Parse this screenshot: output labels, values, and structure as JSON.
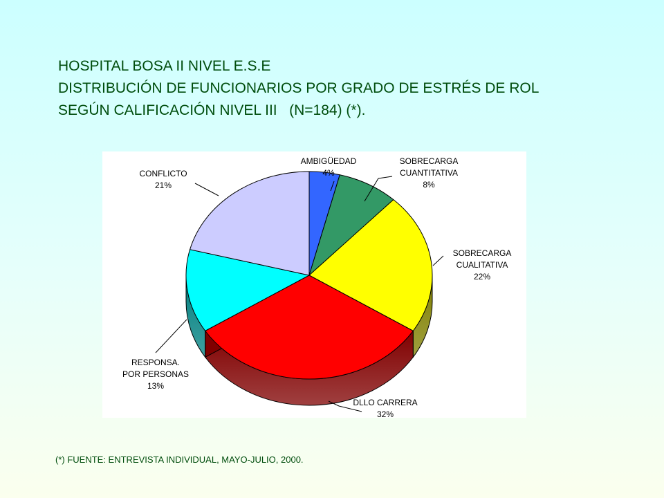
{
  "title": {
    "line1": "HOSPITAL BOSA II NIVEL E.S.E",
    "line2": "DISTRIBUCIÓN DE FUNCIONARIOS POR GRADO DE ESTRÉS DE ROL",
    "line3": "SEGÚN CALIFICACIÓN NIVEL III   (N=184) (*)."
  },
  "footnote": "(*) FUENTE: ENTREVISTA INDIVIDUAL, MAYO-JULIO, 2000.",
  "chart_data": {
    "type": "pie",
    "style": "3d-pie",
    "categories": [
      "AMBIGÜEDAD",
      "SOBRECARGA CUANTITATIVA",
      "SOBRECARGA CUALITATIVA",
      "DLLO CARRERA",
      "RESPONSA. POR PERSONAS",
      "CONFLICTO"
    ],
    "values": [
      4,
      8,
      22,
      32,
      13,
      21
    ],
    "unit": "%",
    "slices": [
      {
        "label_lines": [
          "AMBIGÜEDAD"
        ],
        "value_text": "4%",
        "value": 4,
        "color": "#3366ff",
        "side_color": "#1a3399"
      },
      {
        "label_lines": [
          "SOBRECARGA",
          "CUANTITATIVA"
        ],
        "value_text": "8%",
        "value": 8,
        "color": "#339966",
        "side_color": "#1a4d33"
      },
      {
        "label_lines": [
          "SOBRECARGA",
          "CUALITATIVA"
        ],
        "value_text": "22%",
        "value": 22,
        "color": "#ffff00",
        "side_color": "#808000"
      },
      {
        "label_lines": [
          "DLLO CARRERA"
        ],
        "value_text": "32%",
        "value": 32,
        "color": "#ff0000",
        "side_color": "#800000"
      },
      {
        "label_lines": [
          "RESPONSA.",
          "POR PERSONAS"
        ],
        "value_text": "13%",
        "value": 13,
        "color": "#00ffff",
        "side_color": "#008080"
      },
      {
        "label_lines": [
          "CONFLICTO"
        ],
        "value_text": "21%",
        "value": 21,
        "color": "#ccccff",
        "side_color": "#66667f"
      }
    ],
    "plot_background": "#ffffff",
    "legend": "none"
  }
}
